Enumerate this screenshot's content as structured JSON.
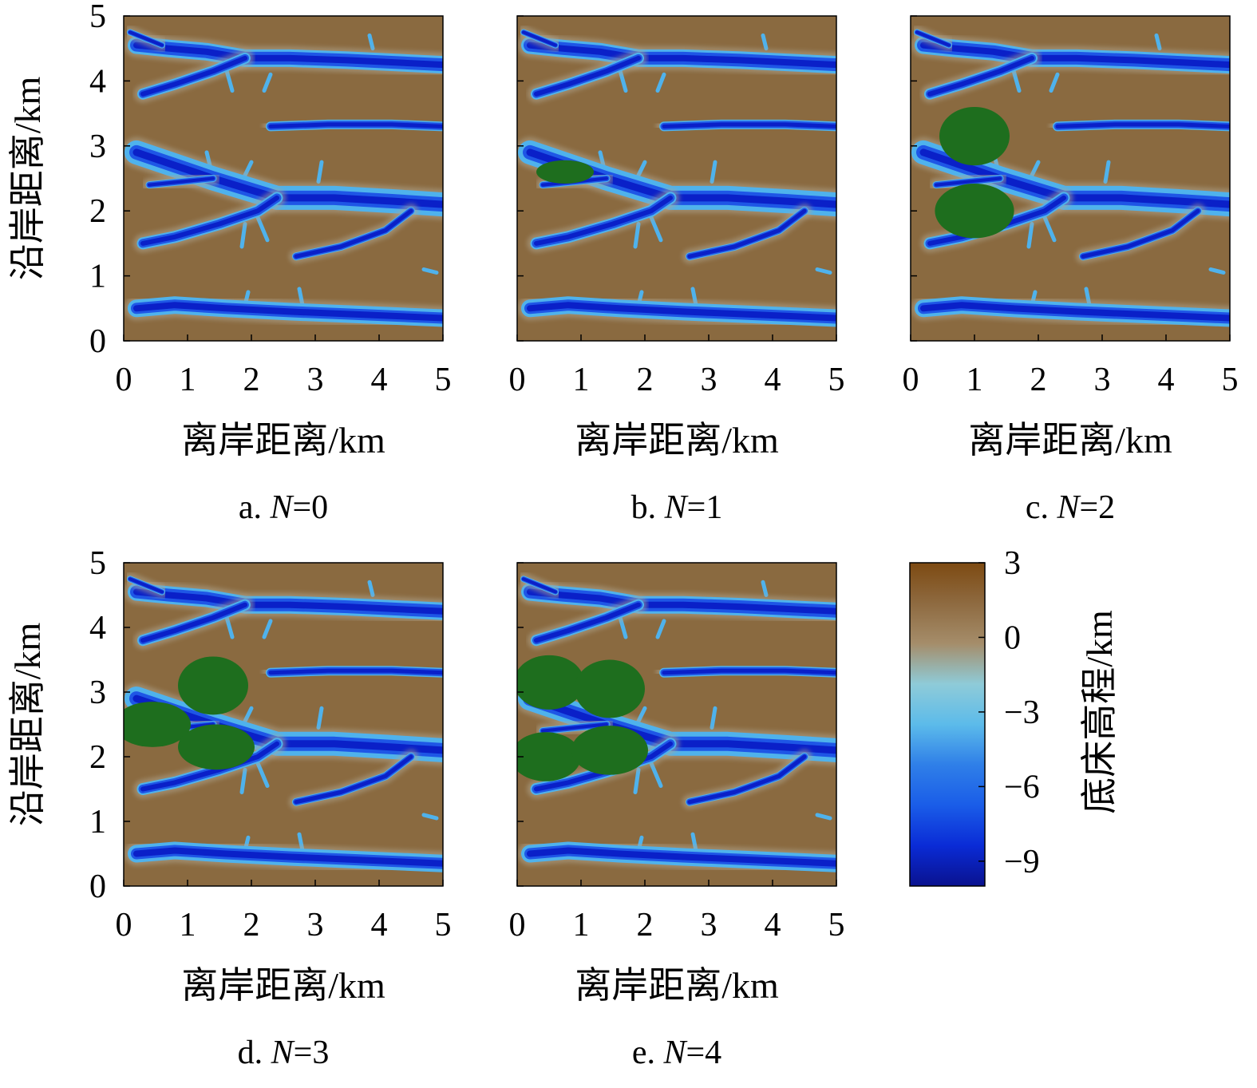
{
  "figure": {
    "colormap": {
      "colors": [
        "#0a128f",
        "#0a2bd6",
        "#1a5de8",
        "#2f7fe8",
        "#5cbbea",
        "#8fcbd8",
        "#a58d6a",
        "#8e6a40",
        "#7d4a12"
      ],
      "channel_deep": "#0a20c8",
      "channel_mid": "#1e56e6",
      "channel_edge": "#4fb2ec",
      "land": "#8a6a40",
      "vegetation": "#1e6e1e"
    },
    "colorbar": {
      "label": "底床高程/km",
      "ticks": [
        3,
        0,
        -3,
        -6,
        -9
      ],
      "tick_labels": [
        "3",
        "0",
        "−3",
        "−6",
        "−9"
      ],
      "range": [
        -10,
        3
      ]
    }
  },
  "chart_data": [
    {
      "type": "heatmap",
      "caption_prefix": "a. ",
      "caption_var": "N",
      "caption_suffix": "=0",
      "N": 0,
      "xlabel": "离岸距离/km",
      "ylabel": "沿岸距离/km",
      "xlim": [
        0,
        5
      ],
      "ylim": [
        0,
        5
      ],
      "xticks": [
        0,
        1,
        2,
        3,
        4,
        5
      ],
      "yticks": [
        0,
        1,
        2,
        3,
        4,
        5
      ],
      "vegetation_patches": []
    },
    {
      "type": "heatmap",
      "caption_prefix": "b. ",
      "caption_var": "N",
      "caption_suffix": "=1",
      "N": 1,
      "xlabel": "离岸距离/km",
      "ylabel": "",
      "xlim": [
        0,
        5
      ],
      "ylim": [
        0,
        5
      ],
      "xticks": [
        0,
        1,
        2,
        3,
        4,
        5
      ],
      "yticks": [
        0,
        1,
        2,
        3,
        4,
        5
      ],
      "vegetation_patches": [
        {
          "cx": 0.75,
          "cy": 2.6,
          "rx": 0.45,
          "ry": 0.18
        }
      ]
    },
    {
      "type": "heatmap",
      "caption_prefix": "c. ",
      "caption_var": "N",
      "caption_suffix": "=2",
      "N": 2,
      "xlabel": "离岸距离/km",
      "ylabel": "",
      "xlim": [
        0,
        5
      ],
      "ylim": [
        0,
        5
      ],
      "xticks": [
        0,
        1,
        2,
        3,
        4,
        5
      ],
      "yticks": [
        0,
        1,
        2,
        3,
        4,
        5
      ],
      "vegetation_patches": [
        {
          "cx": 1.0,
          "cy": 3.15,
          "rx": 0.55,
          "ry": 0.45
        },
        {
          "cx": 1.0,
          "cy": 2.0,
          "rx": 0.62,
          "ry": 0.42
        }
      ]
    },
    {
      "type": "heatmap",
      "caption_prefix": "d. ",
      "caption_var": "N",
      "caption_suffix": "=3",
      "N": 3,
      "xlabel": "离岸距离/km",
      "ylabel": "沿岸距离/km",
      "xlim": [
        0,
        5
      ],
      "ylim": [
        0,
        5
      ],
      "xticks": [
        0,
        1,
        2,
        3,
        4,
        5
      ],
      "yticks": [
        0,
        1,
        2,
        3,
        4,
        5
      ],
      "vegetation_patches": [
        {
          "cx": 1.4,
          "cy": 3.1,
          "rx": 0.55,
          "ry": 0.45
        },
        {
          "cx": 0.45,
          "cy": 2.5,
          "rx": 0.6,
          "ry": 0.35
        },
        {
          "cx": 1.45,
          "cy": 2.15,
          "rx": 0.6,
          "ry": 0.35
        }
      ]
    },
    {
      "type": "heatmap",
      "caption_prefix": "e. ",
      "caption_var": "N",
      "caption_suffix": "=4",
      "N": 4,
      "xlabel": "离岸距离/km",
      "ylabel": "",
      "xlim": [
        0,
        5
      ],
      "ylim": [
        0,
        5
      ],
      "xticks": [
        0,
        1,
        2,
        3,
        4,
        5
      ],
      "yticks": [
        0,
        1,
        2,
        3,
        4,
        5
      ],
      "vegetation_patches": [
        {
          "cx": 0.5,
          "cy": 3.15,
          "rx": 0.55,
          "ry": 0.42
        },
        {
          "cx": 1.45,
          "cy": 3.05,
          "rx": 0.55,
          "ry": 0.45
        },
        {
          "cx": 0.45,
          "cy": 2.0,
          "rx": 0.55,
          "ry": 0.38
        },
        {
          "cx": 1.45,
          "cy": 2.1,
          "rx": 0.6,
          "ry": 0.38
        }
      ]
    }
  ]
}
